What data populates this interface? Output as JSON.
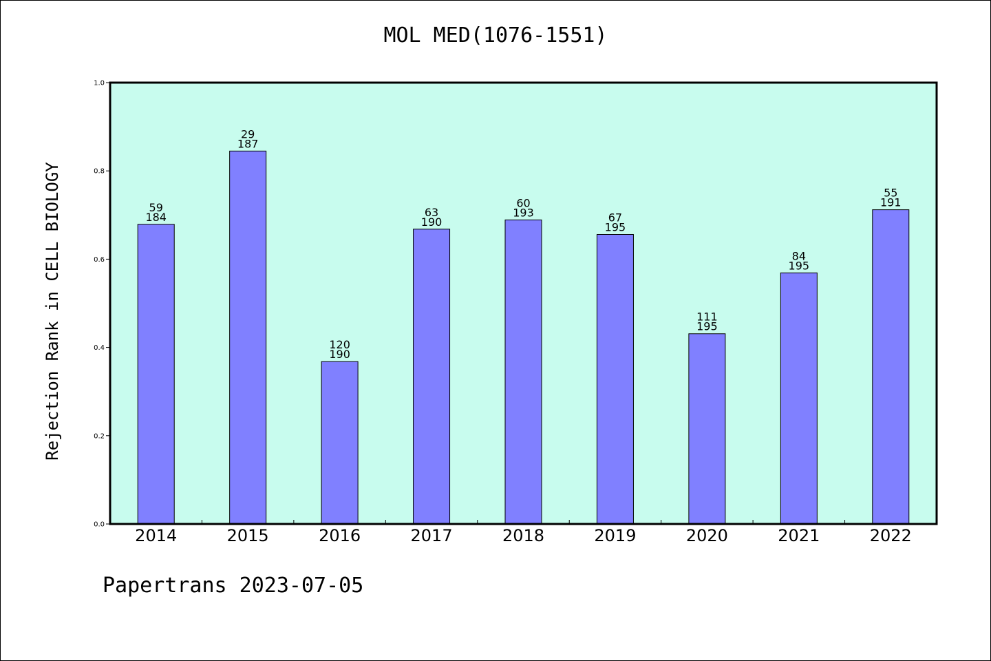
{
  "chart_data": {
    "type": "bar",
    "title": "MOL MED(1076-1551)",
    "xlabel": "",
    "ylabel": "Rejection Rank in CELL BIOLOGY",
    "categories": [
      "2014",
      "2015",
      "2016",
      "2017",
      "2018",
      "2019",
      "2020",
      "2021",
      "2022"
    ],
    "values": [
      0.679,
      0.845,
      0.368,
      0.668,
      0.689,
      0.656,
      0.431,
      0.569,
      0.712
    ],
    "bar_labels": [
      [
        "59",
        "184"
      ],
      [
        "29",
        "187"
      ],
      [
        "120",
        "190"
      ],
      [
        "63",
        "190"
      ],
      [
        "60",
        "193"
      ],
      [
        "67",
        "195"
      ],
      [
        "111",
        "195"
      ],
      [
        "84",
        "195"
      ],
      [
        "55",
        "191"
      ]
    ],
    "ylim": [
      0,
      1.0
    ],
    "yticks": [
      "0.0",
      "0.2",
      "0.4",
      "0.6",
      "0.8",
      "1.0"
    ],
    "grid": false,
    "colors": {
      "plot_background": "#c8fcee",
      "bar_fill": "#8080ff",
      "bar_stroke": "#000000"
    }
  },
  "footer": {
    "text": "Papertrans 2023-07-05"
  }
}
